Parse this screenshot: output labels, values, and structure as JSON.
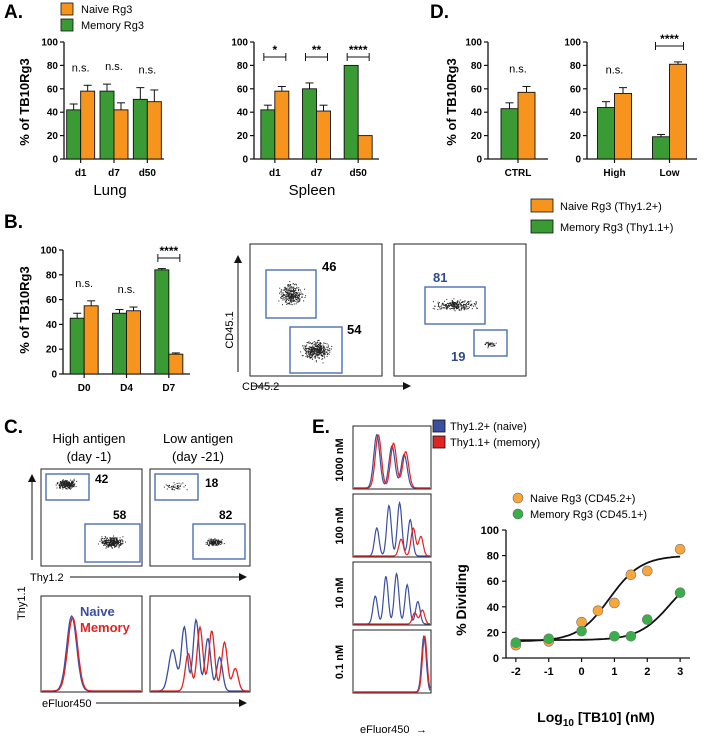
{
  "colors": {
    "naive": "#f7941d",
    "memory": "#3a9a34",
    "blue": "#3b4fa0",
    "red": "#e02424",
    "gate": "#4a6fb5",
    "orange_dot": "#f9a63b",
    "green_dot": "#3aae49"
  },
  "panelA": {
    "label": "A.",
    "legend": {
      "naive": "Naive Rg3",
      "memory": "Memory Rg3"
    },
    "ylabel": "% of TB10Rg3",
    "yticks": [
      "0",
      "20",
      "40",
      "60",
      "80",
      "100"
    ],
    "charts": [
      {
        "title": "Lung",
        "categories": [
          "d1",
          "d7",
          "d50"
        ],
        "memory": [
          42,
          58,
          51
        ],
        "naive": [
          58,
          42,
          49
        ],
        "memory_err": [
          5,
          6,
          10
        ],
        "naive_err": [
          5,
          6,
          10
        ],
        "sig": [
          "n.s.",
          "n.s.",
          "n.s."
        ]
      },
      {
        "title": "Spleen",
        "categories": [
          "d1",
          "d7",
          "d50"
        ],
        "memory": [
          42,
          60,
          80
        ],
        "naive": [
          58,
          41,
          20
        ],
        "memory_err": [
          4,
          5,
          0
        ],
        "naive_err": [
          4,
          5,
          0
        ],
        "sig": [
          "*",
          "**",
          "****"
        ]
      }
    ]
  },
  "panelD": {
    "label": "D.",
    "ylabel": "% of TB10Rg3",
    "yticks": [
      "0",
      "20",
      "40",
      "60",
      "80",
      "100"
    ],
    "charts": [
      {
        "categories": [
          "CTRL"
        ],
        "memory": [
          43
        ],
        "naive": [
          57
        ],
        "memory_err": [
          5
        ],
        "naive_err": [
          5
        ],
        "sig": [
          "n.s."
        ]
      },
      {
        "categories": [
          "High",
          "Low"
        ],
        "memory": [
          44,
          19
        ],
        "naive": [
          56,
          81
        ],
        "memory_err": [
          5,
          2
        ],
        "naive_err": [
          5,
          2
        ],
        "sig": [
          "n.s.",
          "****"
        ]
      }
    ],
    "legend": {
      "naive": "Naive Rg3 (Thy1.2+)",
      "memory": "Memory Rg3 (Thy1.1+)"
    }
  },
  "panelB": {
    "label": "B.",
    "ylabel": "% of TB10Rg3",
    "yticks": [
      "0",
      "20",
      "40",
      "60",
      "80",
      "100"
    ],
    "chart": {
      "categories": [
        "D0",
        "D4",
        "D7"
      ],
      "memory": [
        45,
        49,
        84
      ],
      "naive": [
        55,
        51,
        16
      ],
      "memory_err": [
        4,
        3,
        1
      ],
      "naive_err": [
        4,
        3,
        1
      ],
      "sig": [
        "n.s.",
        "n.s.",
        "****"
      ]
    },
    "flow1": {
      "top": "46",
      "bottom": "54"
    },
    "flow2": {
      "top": "81",
      "bottom": "19"
    },
    "xaxis": "CD45.2",
    "yaxis": "CD45.1"
  },
  "panelC": {
    "label": "C.",
    "col1": [
      "High antigen",
      "(day -1)"
    ],
    "col2": [
      "Low antigen",
      "(day -21)"
    ],
    "flow1": {
      "top": "42",
      "bottom": "58"
    },
    "flow2": {
      "top": "18",
      "bottom": "82"
    },
    "xaxis": "Thy1.2",
    "yaxis": "Thy1.1",
    "hist_legend": {
      "naive": "Naive",
      "memory": "Memory"
    },
    "hist_xaxis": "eFluor450"
  },
  "panelE": {
    "label": "E.",
    "legend": {
      "naive": "Thy1.2+ (naive)",
      "memory": "Thy1.1+ (memory)"
    },
    "concentrations": [
      "1000 nM",
      "100 nM",
      "10 nM",
      "0.1 nM"
    ],
    "hist_xaxis": "eFluor450",
    "curve_legend": {
      "naive": "Naive Rg3 (CD45.2+)",
      "memory": "Memory Rg3 (CD45.1+)"
    },
    "chart_data": {
      "type": "scatter",
      "xlabel": "Log10 [TB10] (nM)",
      "ylabel": "% Dividing",
      "xlim": [
        -2.3,
        3.3
      ],
      "ylim": [
        0,
        100
      ],
      "xticks": [
        "-2",
        "-1",
        "0",
        "1",
        "2",
        "3"
      ],
      "yticks": [
        "0",
        "20",
        "40",
        "60",
        "80",
        "100"
      ],
      "series": [
        {
          "name": "Naive Rg3 (CD45.2+)",
          "x": [
            -2,
            -1,
            0,
            0.5,
            1,
            1.5,
            2,
            3
          ],
          "y": [
            10,
            13,
            28,
            37,
            43,
            65,
            68,
            85
          ]
        },
        {
          "name": "Memory Rg3 (CD45.1+)",
          "x": [
            -2,
            -1,
            0,
            1,
            1.5,
            2,
            3
          ],
          "y": [
            12,
            15,
            21,
            17,
            17,
            30,
            51
          ]
        }
      ]
    }
  }
}
